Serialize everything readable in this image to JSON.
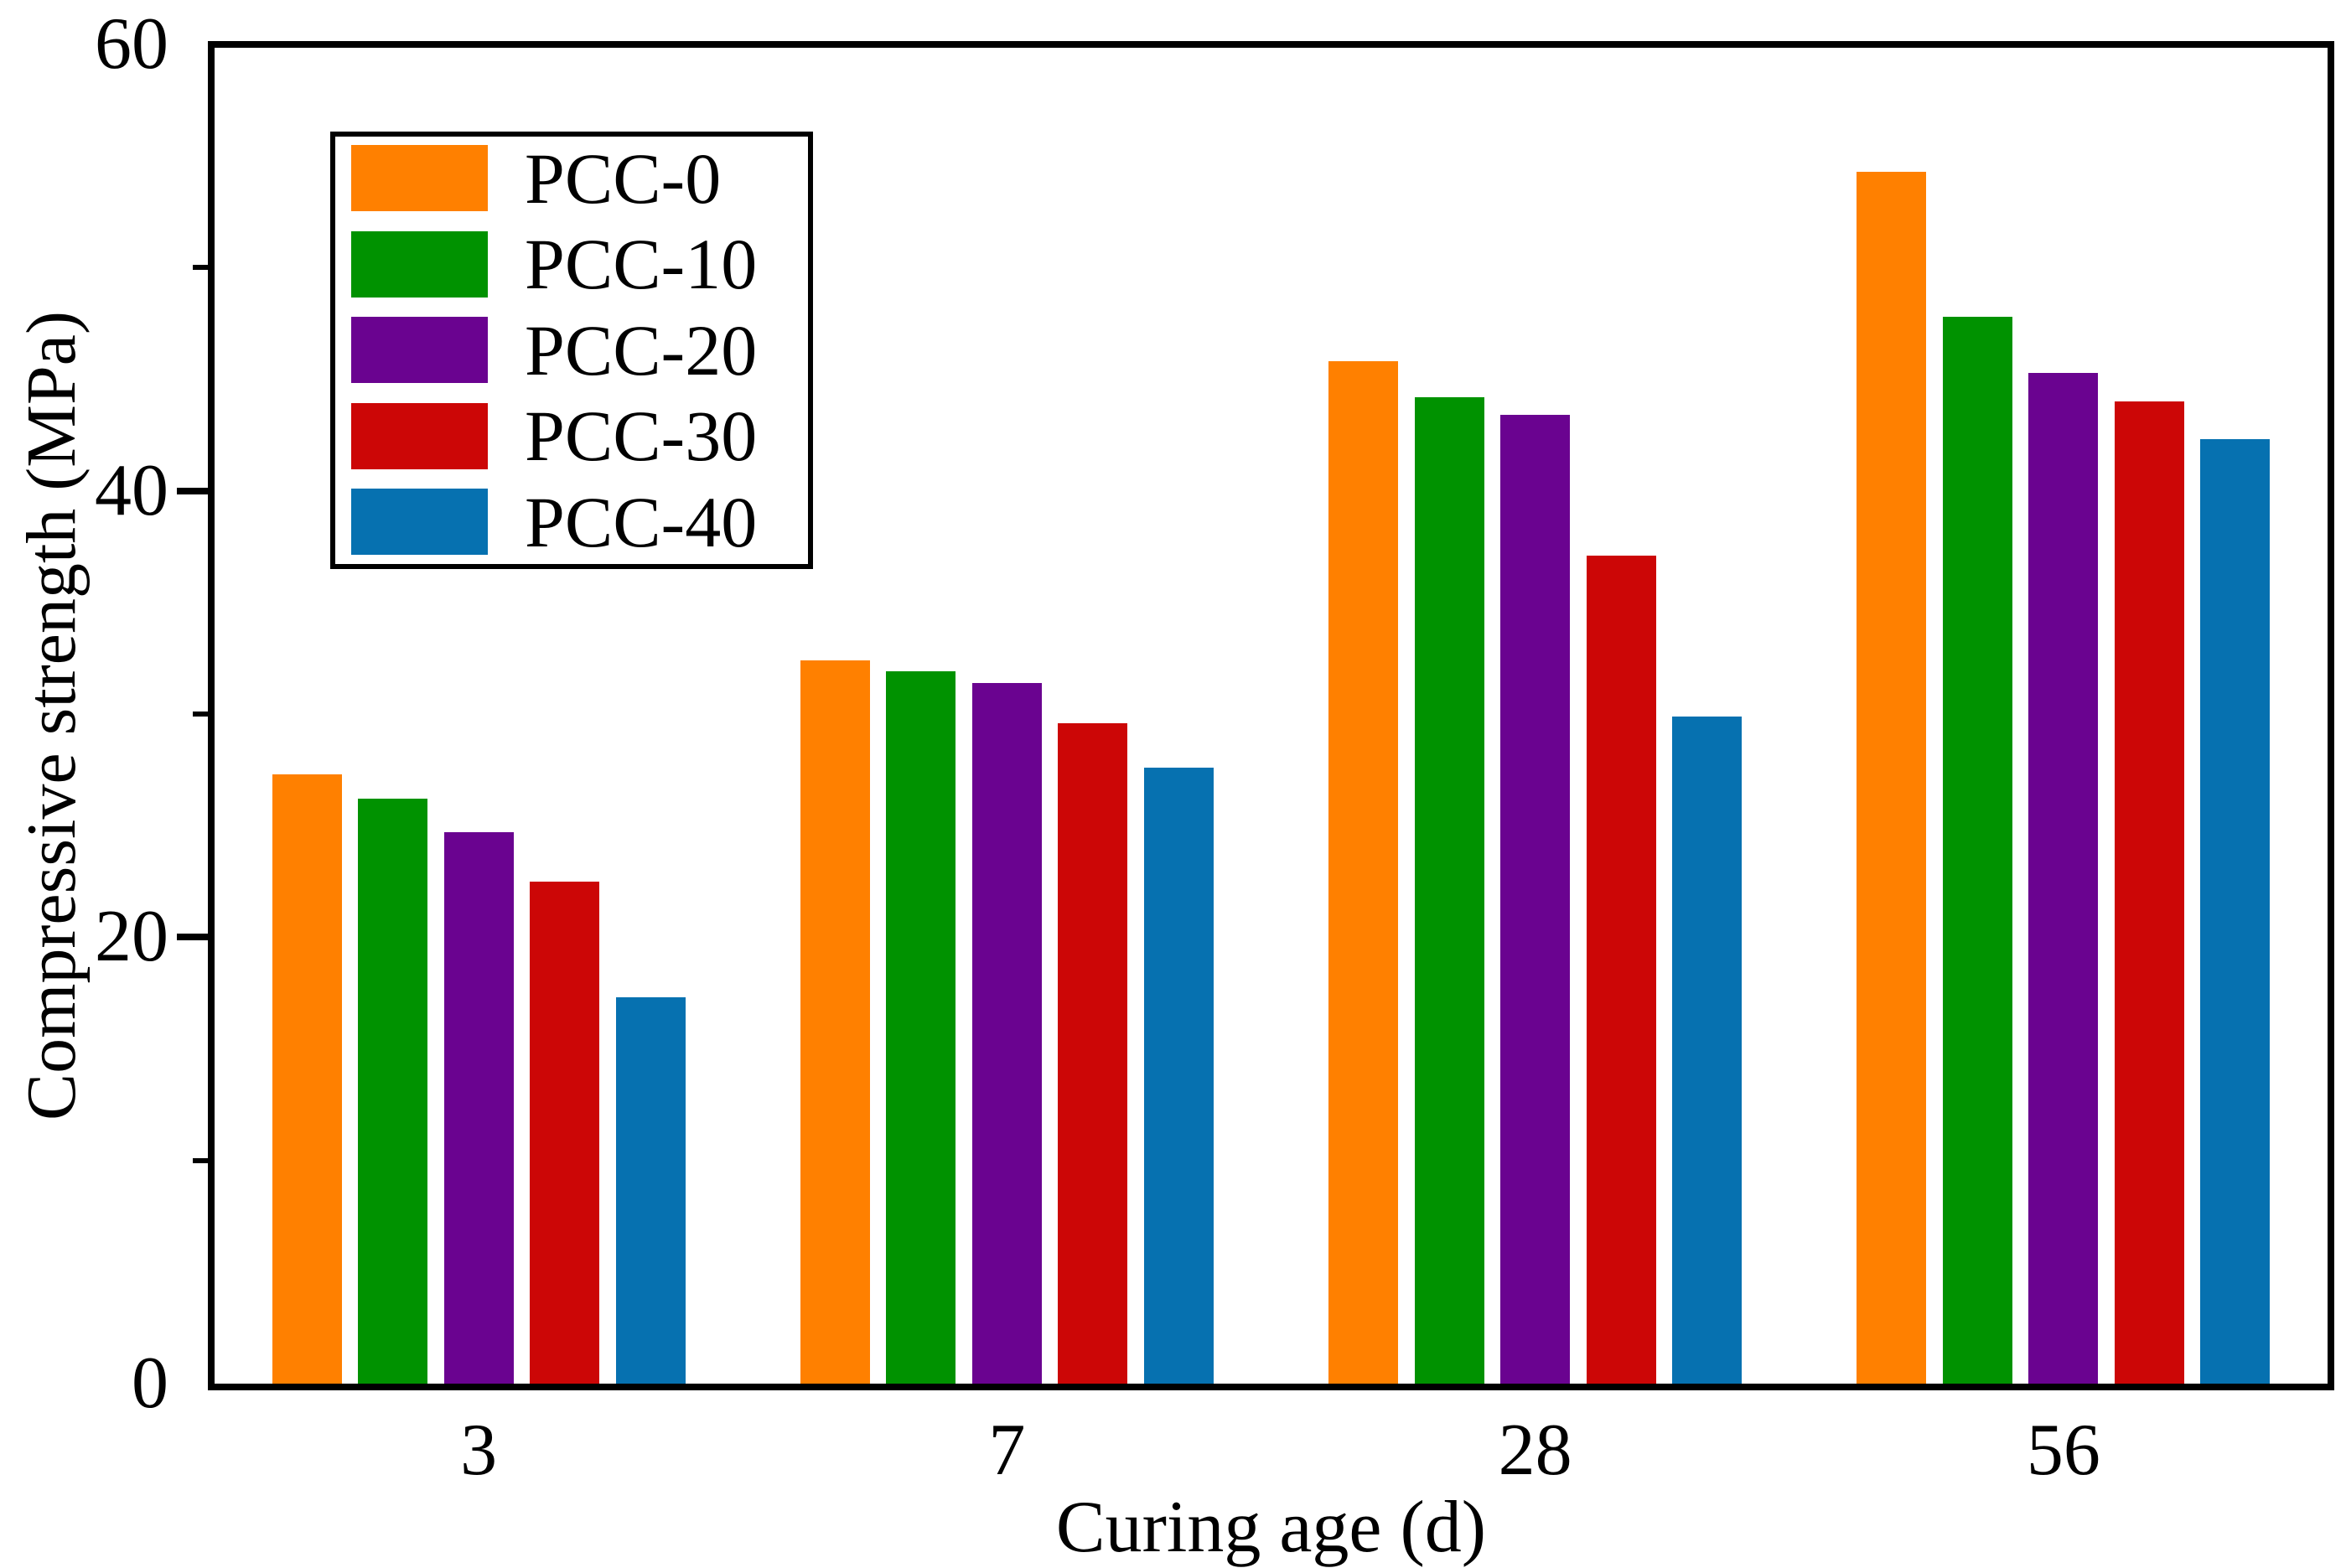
{
  "figure": {
    "background": "#ffffff",
    "frame_color": "#000000"
  },
  "chart_data": {
    "type": "bar",
    "title": "",
    "xlabel": "Curing age (d)",
    "ylabel": "Compressive strength (MPa)",
    "categories": [
      "3",
      "7",
      "28",
      "56"
    ],
    "series": [
      {
        "name": "PCC-0",
        "color": "#FF8000",
        "values": [
          27.3,
          32.4,
          45.8,
          54.3
        ]
      },
      {
        "name": "PCC-10",
        "color": "#009200",
        "values": [
          26.2,
          31.9,
          44.2,
          47.8
        ]
      },
      {
        "name": "PCC-20",
        "color": "#6A0390",
        "values": [
          24.7,
          31.4,
          43.4,
          45.3
        ]
      },
      {
        "name": "PCC-30",
        "color": "#CC0606",
        "values": [
          22.5,
          29.6,
          37.1,
          44.0
        ]
      },
      {
        "name": "PCC-40",
        "color": "#0671B0",
        "values": [
          17.3,
          27.6,
          29.9,
          42.3
        ]
      }
    ],
    "y_axis": {
      "min": 0,
      "max": 60,
      "major_tick_values": [
        0,
        20,
        40,
        60
      ],
      "major_tick_labels": [
        "0",
        "20",
        "40",
        "60"
      ],
      "minor_tick_values": [
        10,
        30,
        50
      ]
    },
    "legend": {
      "position": "upper-left",
      "entries": [
        "PCC-0",
        "PCC-10",
        "PCC-20",
        "PCC-30",
        "PCC-40"
      ]
    },
    "grid": false,
    "frame": "full-box"
  }
}
